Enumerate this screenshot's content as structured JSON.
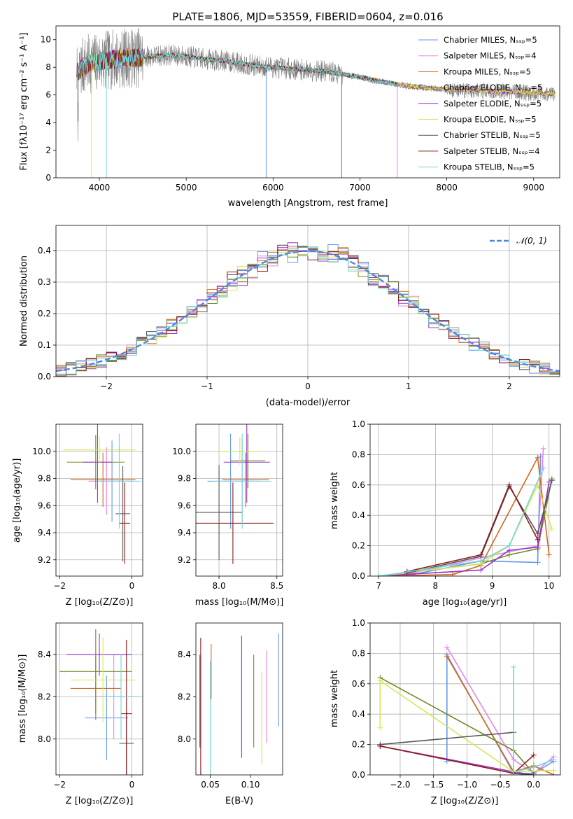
{
  "colors": [
    "#6495ed",
    "#ee82ee",
    "#d2691e",
    "#6b8e23",
    "#9932cc",
    "#d7e65a",
    "#555555",
    "#8b1a1a",
    "#6fd6d8"
  ],
  "chart_data": [
    {
      "id": "spectrum",
      "type": "line",
      "title": "PLATE=1806, MJD=53559, FIBERID=0604, z=0.016",
      "xlabel": "wavelength [Angstrom, rest frame]",
      "ylabel": "Flux [fλ10⁻¹⁷ erg cm⁻² s⁻¹ A⁻¹]",
      "xlim": [
        3500,
        9300
      ],
      "ylim": [
        0,
        11
      ],
      "xticks": [
        4000,
        5000,
        6000,
        7000,
        8000,
        9000
      ],
      "yticks": [
        0,
        2,
        4,
        6,
        8,
        10
      ],
      "data_color": "#808080",
      "legend": [
        "Chabrier MILES, Nₛₛₚ=5",
        "Salpeter MILES, Nₛₛₚ=4",
        "Kroupa MILES, Nₛₛₚ=5",
        "Chabrier ELODIE, Nₛₛₚ=5",
        "Salpeter ELODIE, Nₛₛₚ=5",
        "Kroupa ELODIE, Nₛₛₚ=5",
        "Chabrier STELIB, Nₛₛₚ=5",
        "Salpeter STELIB, Nₛₛₚ=4",
        "Kroupa STELIB, Nₛₛₚ=5"
      ],
      "legend_position": "upper-right",
      "continuum": {
        "x": [
          3740,
          3800,
          3900,
          4000,
          4200,
          4400,
          4600,
          4800,
          5000,
          5200,
          5400,
          5600,
          5800,
          6000,
          6200,
          6400,
          6600,
          6800,
          7000,
          7200,
          7400,
          7600,
          7800,
          8000,
          8200,
          8400,
          8600,
          8800,
          9000,
          9200
        ],
        "y": [
          7.6,
          8.0,
          8.3,
          8.4,
          8.6,
          8.7,
          8.8,
          8.9,
          8.8,
          8.6,
          8.5,
          8.3,
          8.1,
          8.0,
          7.9,
          7.8,
          7.7,
          7.5,
          7.3,
          7.0,
          6.8,
          6.6,
          6.5,
          6.4,
          6.35,
          6.3,
          6.25,
          6.2,
          6.15,
          6.1
        ]
      },
      "model_end_wavelengths": [
        8800,
        8800,
        9250,
        9250,
        9250,
        9250,
        7430,
        7430,
        7430
      ]
    },
    {
      "id": "residuals",
      "type": "area",
      "xlabel": "(data-model)/error",
      "ylabel": "Normed distribution",
      "xlim": [
        -2.5,
        2.5
      ],
      "ylim": [
        0,
        0.48
      ],
      "xticks": [
        -2,
        -1,
        0,
        1,
        2
      ],
      "yticks": [
        0.0,
        0.1,
        0.2,
        0.3,
        0.4
      ],
      "grid": true,
      "bin_width": 0.1,
      "legend": [
        "𝒩(0, 1)"
      ],
      "legend_position": "upper-right",
      "gaussian_color": "#4a86e8"
    },
    {
      "id": "z-age",
      "type": "scatter",
      "xlabel": "Z [log₁₀(Z/Z⊙)]",
      "ylabel": "age  [log₁₀(age/yr)]",
      "xlim": [
        -2.1,
        0.3
      ],
      "ylim": [
        9.08,
        10.2
      ],
      "xticks": [
        -2,
        0
      ],
      "yticks": [
        9.2,
        9.4,
        9.6,
        9.8,
        10.0
      ],
      "grid": true,
      "points": [
        {
          "x": -0.55,
          "y": 9.78,
          "xerr": 0.6,
          "yerr": 0.3
        },
        {
          "x": -0.7,
          "y": 9.78,
          "xerr": 0.5,
          "yerr": 0.25
        },
        {
          "x": -0.8,
          "y": 9.79,
          "xerr": 0.9,
          "yerr": 0.2
        },
        {
          "x": -1.0,
          "y": 9.92,
          "xerr": 0.8,
          "yerr": 0.2
        },
        {
          "x": -0.95,
          "y": 9.92,
          "xerr": 0.4,
          "yerr": 0.3
        },
        {
          "x": -0.9,
          "y": 10.01,
          "xerr": 1.0,
          "yerr": 0.1
        },
        {
          "x": -0.25,
          "y": 9.54,
          "xerr": 0.2,
          "yerr": 0.35
        },
        {
          "x": -0.2,
          "y": 9.47,
          "xerr": 0.15,
          "yerr": 0.3
        },
        {
          "x": -0.35,
          "y": 9.78,
          "xerr": 0.6,
          "yerr": 0.35
        }
      ]
    },
    {
      "id": "mass-age",
      "type": "scatter",
      "xlabel": "mass [log₁₀(M/M⊙)]",
      "ylabel": "",
      "xlim": [
        7.8,
        8.55
      ],
      "ylim": [
        9.08,
        10.2
      ],
      "xticks": [
        8.0,
        8.5
      ],
      "yticks": [
        9.2,
        9.4,
        9.6,
        9.8,
        10.0
      ],
      "grid": true,
      "points": [
        {
          "x": 8.1,
          "y": 9.78,
          "xerr": 0.2,
          "yerr": 0.35
        },
        {
          "x": 8.2,
          "y": 9.78,
          "xerr": 0.15,
          "yerr": 0.3
        },
        {
          "x": 8.23,
          "y": 9.79,
          "xerr": 0.2,
          "yerr": 0.2
        },
        {
          "x": 8.25,
          "y": 9.93,
          "xerr": 0.15,
          "yerr": 0.2
        },
        {
          "x": 8.24,
          "y": 9.92,
          "xerr": 0.2,
          "yerr": 0.3
        },
        {
          "x": 8.18,
          "y": 10.0,
          "xerr": 0.2,
          "yerr": 0.1
        },
        {
          "x": 8.0,
          "y": 9.55,
          "xerr": 0.2,
          "yerr": 0.35
        },
        {
          "x": 8.12,
          "y": 9.47,
          "xerr": 0.35,
          "yerr": 0.3
        },
        {
          "x": 8.2,
          "y": 9.78,
          "xerr": 0.25,
          "yerr": 0.35
        }
      ]
    },
    {
      "id": "age-weight",
      "type": "line",
      "xlabel": "age  [log₁₀(age/yr)]",
      "ylabel": "mass weight",
      "xlim": [
        6.85,
        10.2
      ],
      "ylim": [
        0,
        1.0
      ],
      "xticks": [
        7,
        8,
        9,
        10
      ],
      "yticks": [
        0.0,
        0.2,
        0.4,
        0.6,
        0.8,
        1.0
      ],
      "grid": true,
      "series": [
        {
          "x": [
            7.0,
            7.6,
            8.8,
            9.8,
            9.85
          ],
          "y": [
            0.0,
            0.01,
            0.1,
            0.09,
            0.79
          ]
        },
        {
          "x": [
            7.0,
            7.6,
            8.8,
            9.8,
            9.9
          ],
          "y": [
            0.0,
            0.02,
            0.12,
            0.2,
            0.84
          ]
        },
        {
          "x": [
            7.0,
            8.3,
            8.8,
            9.8,
            10.0
          ],
          "y": [
            0.0,
            0.01,
            0.07,
            0.78,
            0.14
          ]
        },
        {
          "x": [
            7.0,
            8.8,
            9.3,
            9.8,
            10.05
          ],
          "y": [
            0.0,
            0.08,
            0.14,
            0.18,
            0.64
          ]
        },
        {
          "x": [
            7.0,
            8.8,
            9.3,
            9.8,
            10.0
          ],
          "y": [
            0.0,
            0.04,
            0.17,
            0.19,
            0.62
          ]
        },
        {
          "x": [
            7.0,
            8.8,
            9.3,
            9.8,
            10.05
          ],
          "y": [
            0.0,
            0.08,
            0.2,
            0.6,
            0.31
          ]
        },
        {
          "x": [
            7.5,
            8.8,
            9.3,
            9.8,
            10.05
          ],
          "y": [
            0.02,
            0.13,
            0.59,
            0.28,
            0.63
          ]
        },
        {
          "x": [
            7.5,
            8.8,
            9.3,
            9.8
          ],
          "y": [
            0.03,
            0.14,
            0.6,
            0.24
          ]
        },
        {
          "x": [
            7.0,
            8.8,
            9.3,
            9.9
          ],
          "y": [
            0.0,
            0.1,
            0.2,
            0.71
          ]
        }
      ]
    },
    {
      "id": "z-mass",
      "type": "scatter",
      "xlabel": "Z [log₁₀(Z/Z⊙)]",
      "ylabel": "mass [log₁₀(M/M⊙)]",
      "xlim": [
        -2.1,
        0.3
      ],
      "ylim": [
        7.83,
        8.55
      ],
      "xticks": [
        -2,
        0
      ],
      "yticks": [
        8.0,
        8.2,
        8.4
      ],
      "grid": true,
      "points": [
        {
          "x": -0.7,
          "y": 8.1,
          "xerr": 0.6,
          "yerr": 0.2
        },
        {
          "x": -0.5,
          "y": 8.2,
          "xerr": 0.5,
          "yerr": 0.2
        },
        {
          "x": -1.0,
          "y": 8.24,
          "xerr": 0.7,
          "yerr": 0.15
        },
        {
          "x": -1.0,
          "y": 8.32,
          "xerr": 1.0,
          "yerr": 0.2
        },
        {
          "x": -0.9,
          "y": 8.4,
          "xerr": 0.9,
          "yerr": 0.1
        },
        {
          "x": -0.8,
          "y": 8.28,
          "xerr": 0.9,
          "yerr": 0.2
        },
        {
          "x": -0.15,
          "y": 7.98,
          "xerr": 0.2,
          "yerr": 0.15
        },
        {
          "x": -0.15,
          "y": 8.12,
          "xerr": 0.15,
          "yerr": 0.35
        },
        {
          "x": -0.3,
          "y": 8.2,
          "xerr": 0.5,
          "yerr": 0.2
        }
      ]
    },
    {
      "id": "ebv-mass",
      "type": "scatter",
      "xlabel": "E(B-V)",
      "ylabel": "",
      "xlim": [
        0.032,
        0.14
      ],
      "ylim": [
        7.83,
        8.55
      ],
      "xticks": [
        0.05,
        0.1
      ],
      "yticks": [
        8.0,
        8.2,
        8.4
      ],
      "grid": false,
      "points": [
        {
          "x": 0.135,
          "y": 8.28,
          "yerr": 0.22
        },
        {
          "x": 0.12,
          "y": 8.2,
          "yerr": 0.22
        },
        {
          "x": 0.051,
          "y": 8.32,
          "yerr": 0.13
        },
        {
          "x": 0.104,
          "y": 8.18,
          "yerr": 0.22
        },
        {
          "x": 0.089,
          "y": 8.2,
          "yerr": 0.29
        },
        {
          "x": 0.114,
          "y": 8.1,
          "yerr": 0.22
        },
        {
          "x": 0.037,
          "y": 8.18,
          "yerr": 0.22
        },
        {
          "x": 0.038,
          "y": 8.15,
          "yerr": 0.33
        },
        {
          "x": 0.05,
          "y": 8.08,
          "yerr": 0.29
        }
      ]
    },
    {
      "id": "z-weight",
      "type": "line",
      "xlabel": "Z [log₁₀(Z/Z⊙)]",
      "ylabel": "mass weight",
      "xlim": [
        -2.45,
        0.4
      ],
      "ylim": [
        0,
        1.0
      ],
      "xticks": [
        -2.0,
        -1.5,
        -1.0,
        -0.5,
        0.0
      ],
      "yticks": [
        0.0,
        0.2,
        0.4,
        0.6,
        0.8,
        1.0
      ],
      "grid": true,
      "series": [
        {
          "x": [
            -1.3,
            -1.3,
            -0.3,
            0.0,
            0.3
          ],
          "y": [
            0.09,
            0.79,
            0.01,
            0.01,
            0.09
          ]
        },
        {
          "x": [
            -1.3,
            -0.3,
            0.0,
            0.3
          ],
          "y": [
            0.84,
            0.1,
            0.01,
            0.12
          ]
        },
        {
          "x": [
            -1.3,
            -0.3,
            0.0,
            0.3
          ],
          "y": [
            0.78,
            0.02,
            0.06,
            0.0
          ]
        },
        {
          "x": [
            -2.3,
            -0.3,
            0.0
          ],
          "y": [
            0.64,
            0.16,
            0.01
          ]
        },
        {
          "x": [
            -2.3,
            -2.3,
            -0.3,
            0.0
          ],
          "y": [
            0.19,
            0.19,
            0.02,
            0.0
          ]
        },
        {
          "x": [
            -2.3,
            -2.3,
            -0.3,
            0.3
          ],
          "y": [
            0.31,
            0.62,
            0.02,
            0.03
          ]
        },
        {
          "x": [
            -2.3,
            -0.3,
            -0.3,
            0.0
          ],
          "y": [
            0.2,
            0.28,
            0.01,
            0.0
          ]
        },
        {
          "x": [
            -2.3,
            -0.3,
            0.0
          ],
          "y": [
            0.19,
            0.01,
            0.13
          ]
        },
        {
          "x": [
            -0.3,
            -0.3,
            0.0,
            0.3
          ],
          "y": [
            0.71,
            0.02,
            0.05,
            0.1
          ]
        }
      ]
    }
  ]
}
